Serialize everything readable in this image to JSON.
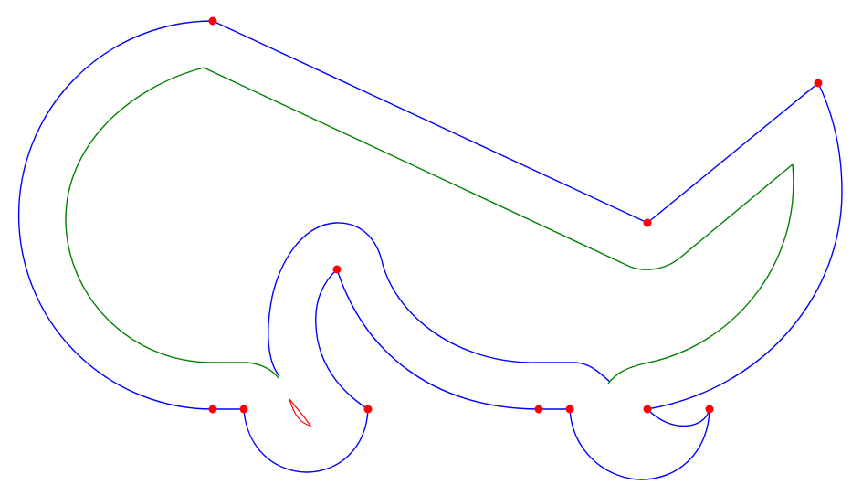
{
  "colors": {
    "outer_outline": "#0000ff",
    "inner_offset": "#008000",
    "artifact": "#ff0000",
    "vertex": "#ff0000",
    "background": "#ffffff"
  }
}
